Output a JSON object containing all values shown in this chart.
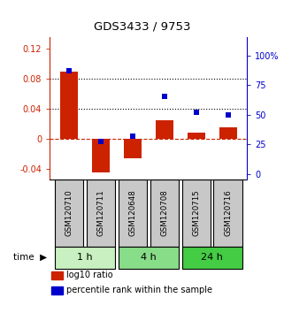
{
  "title": "GDS3433 / 9753",
  "samples": [
    "GSM120710",
    "GSM120711",
    "GSM120648",
    "GSM120708",
    "GSM120715",
    "GSM120716"
  ],
  "log10_ratio": [
    0.09,
    -0.045,
    -0.026,
    0.025,
    0.008,
    0.015
  ],
  "percentile_rank": [
    87,
    27,
    32,
    65,
    52,
    50
  ],
  "groups": [
    {
      "label": "1 h",
      "indices": [
        0,
        1
      ],
      "color": "#c8f0c0"
    },
    {
      "label": "4 h",
      "indices": [
        2,
        3
      ],
      "color": "#88dd88"
    },
    {
      "label": "24 h",
      "indices": [
        4,
        5
      ],
      "color": "#44cc44"
    }
  ],
  "bar_color": "#cc2200",
  "scatter_color": "#0000cc",
  "ylim_left": [
    -0.055,
    0.135
  ],
  "ylim_right": [
    -5,
    115
  ],
  "yticks_left": [
    -0.04,
    0.0,
    0.04,
    0.08,
    0.12
  ],
  "yticks_right": [
    0,
    25,
    50,
    75,
    100
  ],
  "ytick_labels_left": [
    "-0.04",
    "0",
    "0.04",
    "0.08",
    "0.12"
  ],
  "ytick_labels_right": [
    "0",
    "25",
    "50",
    "75",
    "100%"
  ],
  "hlines": [
    0.04,
    0.08
  ],
  "bar_width": 0.55,
  "sample_box_color": "#c8c8c8",
  "time_label": "time",
  "legend_bar_label": "log10 ratio",
  "legend_scatter_label": "percentile rank within the sample"
}
